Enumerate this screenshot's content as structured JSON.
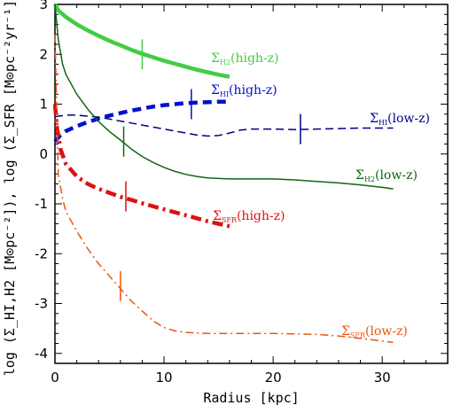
{
  "chart_data": {
    "type": "line",
    "xlabel": "Radius [kpc]",
    "ylabel": "log (Σ_HI,H2 [M⊙pc⁻²]), log (Σ_SFR [M⊙pc⁻²yr⁻¹])",
    "xlim": [
      0,
      36
    ],
    "ylim": [
      -4.2,
      3
    ],
    "xticks": [
      0,
      10,
      20,
      30
    ],
    "yticks": [
      -4,
      -3,
      -2,
      -1,
      0,
      1,
      2,
      3
    ],
    "grid": false,
    "series": [
      {
        "name": "Σ_H2(high-z)",
        "label_main": "Σ",
        "label_sub": "H2",
        "label_suffix": "(high-z)",
        "color": "#44cc44",
        "style": "solid",
        "weight": "thick",
        "x": [
          0,
          0.3,
          1,
          2,
          3,
          4,
          5,
          6,
          7,
          8,
          9,
          10,
          11,
          12,
          13,
          14,
          15,
          16
        ],
        "y": [
          3.0,
          2.88,
          2.75,
          2.6,
          2.48,
          2.37,
          2.27,
          2.18,
          2.09,
          2.01,
          1.94,
          1.87,
          1.81,
          1.75,
          1.69,
          1.64,
          1.59,
          1.55
        ],
        "tick_x": 8,
        "tick_y": 2.0
      },
      {
        "name": "Σ_HI(high-z)",
        "label_main": "Σ",
        "label_sub": "HI",
        "label_suffix": "(high-z)",
        "color": "#0011cc",
        "style": "dashed",
        "weight": "thick",
        "x": [
          0,
          0.5,
          1,
          2,
          3,
          4,
          5,
          6,
          7,
          8,
          9,
          10,
          11,
          12,
          13,
          14,
          15,
          16
        ],
        "y": [
          0.25,
          0.38,
          0.46,
          0.56,
          0.64,
          0.71,
          0.77,
          0.82,
          0.87,
          0.91,
          0.95,
          0.98,
          1.0,
          1.02,
          1.03,
          1.04,
          1.05,
          1.05
        ],
        "tick_x": 12.5,
        "tick_y": 1.0
      },
      {
        "name": "Σ_HI(low-z)",
        "label_main": "Σ",
        "label_sub": "HI",
        "label_suffix": "(low-z)",
        "color": "#000088",
        "style": "dashed",
        "weight": "thin",
        "x": [
          0,
          1,
          2,
          4,
          6,
          8,
          10,
          12,
          13,
          14,
          15,
          16,
          17,
          18,
          19,
          20,
          22,
          24,
          26,
          28,
          30,
          31
        ],
        "y": [
          0.75,
          0.78,
          0.78,
          0.74,
          0.66,
          0.58,
          0.5,
          0.42,
          0.38,
          0.36,
          0.37,
          0.42,
          0.48,
          0.5,
          0.5,
          0.5,
          0.49,
          0.5,
          0.51,
          0.52,
          0.52,
          0.52
        ],
        "tick_x": 22.5,
        "tick_y": 0.5
      },
      {
        "name": "Σ_H2(low-z)",
        "label_main": "Σ",
        "label_sub": "H2",
        "label_suffix": "(low-z)",
        "color": "#116611",
        "style": "solid",
        "weight": "thin",
        "x": [
          0,
          0.3,
          0.7,
          1,
          2,
          3,
          4,
          5,
          6,
          7,
          8,
          9,
          10,
          11,
          12,
          13,
          14,
          16,
          18,
          20,
          22,
          24,
          26,
          28,
          30,
          31
        ],
        "y": [
          3.0,
          2.3,
          1.8,
          1.6,
          1.2,
          0.9,
          0.65,
          0.45,
          0.28,
          0.1,
          -0.05,
          -0.17,
          -0.27,
          -0.35,
          -0.41,
          -0.45,
          -0.48,
          -0.5,
          -0.5,
          -0.5,
          -0.52,
          -0.55,
          -0.58,
          -0.62,
          -0.67,
          -0.7
        ],
        "tick_x": 6.3,
        "tick_y": 0.25
      },
      {
        "name": "Σ_SFR(high-z)",
        "label_main": "Σ",
        "label_sub": "SFR",
        "label_suffix": "(high-z)",
        "color": "#dd1111",
        "style": "dashdot",
        "weight": "thick",
        "x": [
          0,
          0.2,
          0.5,
          1,
          2,
          3,
          4,
          5,
          6,
          7,
          8,
          9,
          10,
          11,
          12,
          13,
          14,
          15,
          16
        ],
        "y": [
          1.0,
          0.5,
          0.1,
          -0.2,
          -0.45,
          -0.6,
          -0.7,
          -0.78,
          -0.86,
          -0.92,
          -0.99,
          -1.05,
          -1.11,
          -1.17,
          -1.23,
          -1.29,
          -1.35,
          -1.4,
          -1.45
        ],
        "tick_x": 6.5,
        "tick_y": -0.85
      },
      {
        "name": "Σ_SFR(low-z)",
        "label_main": "Σ",
        "label_sub": "SFR",
        "label_suffix": "(low-z)",
        "color": "#ee5511",
        "style": "dashdot",
        "weight": "thin",
        "x": [
          0,
          0.3,
          0.7,
          1,
          2,
          3,
          4,
          5,
          6,
          7,
          8,
          9,
          10,
          11,
          12,
          14,
          16,
          18,
          20,
          22,
          24,
          26,
          28,
          30,
          31
        ],
        "y": [
          2.4,
          -0.4,
          -0.9,
          -1.15,
          -1.55,
          -1.9,
          -2.2,
          -2.45,
          -2.7,
          -2.95,
          -3.15,
          -3.35,
          -3.48,
          -3.55,
          -3.58,
          -3.6,
          -3.6,
          -3.6,
          -3.6,
          -3.61,
          -3.62,
          -3.65,
          -3.7,
          -3.75,
          -3.78
        ],
        "tick_x": 6,
        "tick_y": -2.65
      }
    ]
  }
}
